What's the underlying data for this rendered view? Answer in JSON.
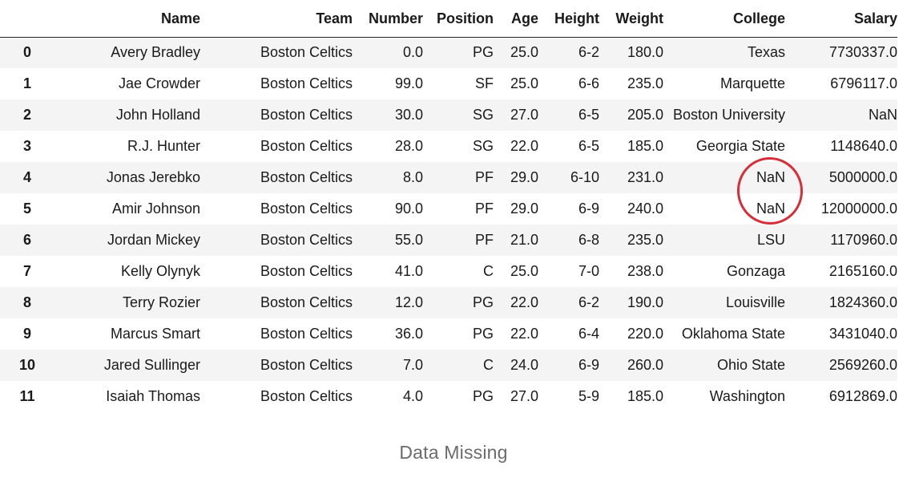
{
  "table": {
    "columns": [
      "",
      "Name",
      "Team",
      "Number",
      "Position",
      "Age",
      "Height",
      "Weight",
      "College",
      "Salary"
    ],
    "rows": [
      {
        "index": "0",
        "name": "Avery Bradley",
        "team": "Boston Celtics",
        "number": "0.0",
        "position": "PG",
        "age": "25.0",
        "height": "6-2",
        "weight": "180.0",
        "college": "Texas",
        "salary": "7730337.0"
      },
      {
        "index": "1",
        "name": "Jae Crowder",
        "team": "Boston Celtics",
        "number": "99.0",
        "position": "SF",
        "age": "25.0",
        "height": "6-6",
        "weight": "235.0",
        "college": "Marquette",
        "salary": "6796117.0"
      },
      {
        "index": "2",
        "name": "John Holland",
        "team": "Boston Celtics",
        "number": "30.0",
        "position": "SG",
        "age": "27.0",
        "height": "6-5",
        "weight": "205.0",
        "college": "Boston University",
        "salary": "NaN"
      },
      {
        "index": "3",
        "name": "R.J. Hunter",
        "team": "Boston Celtics",
        "number": "28.0",
        "position": "SG",
        "age": "22.0",
        "height": "6-5",
        "weight": "185.0",
        "college": "Georgia State",
        "salary": "1148640.0"
      },
      {
        "index": "4",
        "name": "Jonas Jerebko",
        "team": "Boston Celtics",
        "number": "8.0",
        "position": "PF",
        "age": "29.0",
        "height": "6-10",
        "weight": "231.0",
        "college": "NaN",
        "salary": "5000000.0"
      },
      {
        "index": "5",
        "name": "Amir Johnson",
        "team": "Boston Celtics",
        "number": "90.0",
        "position": "PF",
        "age": "29.0",
        "height": "6-9",
        "weight": "240.0",
        "college": "NaN",
        "salary": "12000000.0"
      },
      {
        "index": "6",
        "name": "Jordan Mickey",
        "team": "Boston Celtics",
        "number": "55.0",
        "position": "PF",
        "age": "21.0",
        "height": "6-8",
        "weight": "235.0",
        "college": "LSU",
        "salary": "1170960.0"
      },
      {
        "index": "7",
        "name": "Kelly Olynyk",
        "team": "Boston Celtics",
        "number": "41.0",
        "position": "C",
        "age": "25.0",
        "height": "7-0",
        "weight": "238.0",
        "college": "Gonzaga",
        "salary": "2165160.0"
      },
      {
        "index": "8",
        "name": "Terry Rozier",
        "team": "Boston Celtics",
        "number": "12.0",
        "position": "PG",
        "age": "22.0",
        "height": "6-2",
        "weight": "190.0",
        "college": "Louisville",
        "salary": "1824360.0"
      },
      {
        "index": "9",
        "name": "Marcus Smart",
        "team": "Boston Celtics",
        "number": "36.0",
        "position": "PG",
        "age": "22.0",
        "height": "6-4",
        "weight": "220.0",
        "college": "Oklahoma State",
        "salary": "3431040.0"
      },
      {
        "index": "10",
        "name": "Jared Sullinger",
        "team": "Boston Celtics",
        "number": "7.0",
        "position": "C",
        "age": "24.0",
        "height": "6-9",
        "weight": "260.0",
        "college": "Ohio State",
        "salary": "2569260.0"
      },
      {
        "index": "11",
        "name": "Isaiah Thomas",
        "team": "Boston Celtics",
        "number": "4.0",
        "position": "PG",
        "age": "27.0",
        "height": "5-9",
        "weight": "185.0",
        "college": "Washington",
        "salary": "6912869.0"
      }
    ]
  },
  "annotation": {
    "color": "#d62f3a"
  },
  "caption": "Data Missing"
}
